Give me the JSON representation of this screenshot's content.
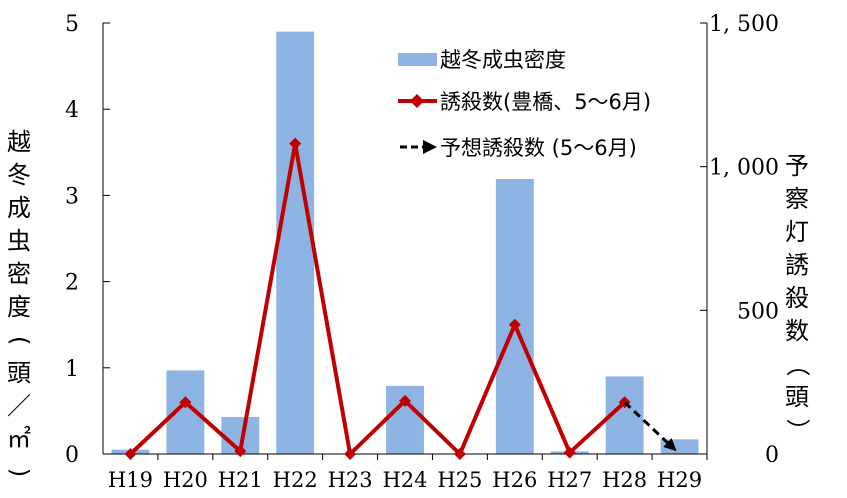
{
  "chart_data": {
    "type": "bar+line",
    "categories": [
      "H19",
      "H20",
      "H21",
      "H22",
      "H23",
      "H24",
      "H25",
      "H26",
      "H27",
      "H28",
      "H29"
    ],
    "series": [
      {
        "name": "越冬成虫密度",
        "type": "bar",
        "axis": "left",
        "color": "#8eb4e3",
        "values": [
          0.05,
          0.97,
          0.43,
          4.9,
          0,
          0.79,
          0,
          3.19,
          0.03,
          0.9,
          0.17
        ]
      },
      {
        "name": "誘殺数(豊橋、5～6月)",
        "type": "line",
        "axis": "right",
        "color": "#c00000",
        "values": [
          0,
          180,
          10,
          1080,
          0,
          185,
          0,
          450,
          5,
          180,
          null
        ]
      },
      {
        "name": "予想誘殺数 (5～6月)",
        "type": "line-dashed",
        "axis": "right",
        "color": "#000000",
        "x": [
          "H28",
          "H29"
        ],
        "values": [
          180,
          0
        ]
      }
    ],
    "y_left": {
      "label": "越冬成虫密度(頭／㎡)",
      "range": [
        0,
        5
      ],
      "ticks": [
        "0",
        "1",
        "2",
        "3",
        "4",
        "5"
      ]
    },
    "y_right": {
      "label": "予察灯誘殺数（頭）",
      "range": [
        0,
        1500
      ],
      "ticks": [
        "0",
        "500",
        "1, 000",
        "1, 500"
      ]
    },
    "legend_position": "top-right",
    "grid": false
  }
}
